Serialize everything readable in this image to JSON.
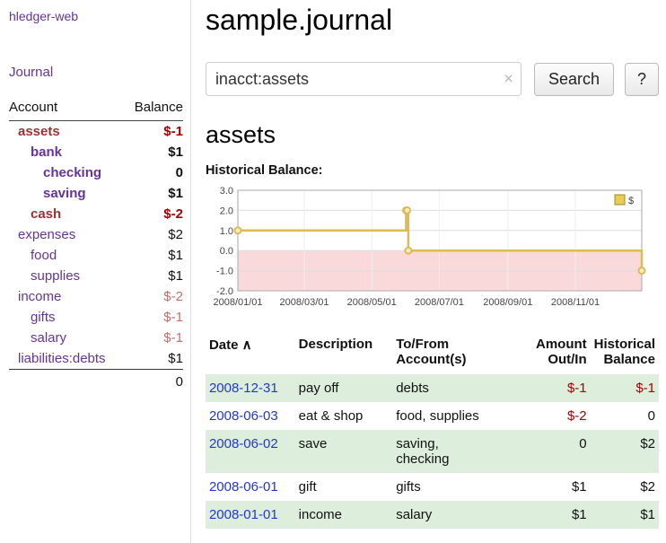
{
  "app": {
    "brand": "hledger-web"
  },
  "colors": {
    "accent_purple": "#663399",
    "account_negative_name": "#993333",
    "negative_amount": "#a40000",
    "negative_amount_faded": "#c46d6d",
    "link_blue": "#2238cc",
    "row_green": "#ddeedd",
    "chart_line_gold": "#ddbb55",
    "chart_negative_region": "#f9d9d9"
  },
  "sidebar": {
    "journal_label": "Journal",
    "header": {
      "account": "Account",
      "balance": "Balance"
    },
    "accounts": [
      {
        "name": "assets",
        "balance": "$-1",
        "level": 0,
        "strong": true,
        "tone": "maroon",
        "bal_tone": "neg"
      },
      {
        "name": "bank",
        "balance": "$1",
        "level": 1,
        "strong": true,
        "tone": "purple",
        "bal_tone": "plain"
      },
      {
        "name": "checking",
        "balance": "0",
        "level": 2,
        "strong": true,
        "tone": "purple",
        "bal_tone": "plain"
      },
      {
        "name": "saving",
        "balance": "$1",
        "level": 2,
        "strong": true,
        "tone": "purple",
        "bal_tone": "plain"
      },
      {
        "name": "cash",
        "balance": "$-2",
        "level": 1,
        "strong": true,
        "tone": "maroon",
        "bal_tone": "neg"
      },
      {
        "name": "expenses",
        "balance": "$2",
        "level": 0,
        "strong": false,
        "tone": "purple",
        "bal_tone": "plain"
      },
      {
        "name": "food",
        "balance": "$1",
        "level": 1,
        "strong": false,
        "tone": "purple",
        "bal_tone": "plain"
      },
      {
        "name": "supplies",
        "balance": "$1",
        "level": 1,
        "strong": false,
        "tone": "purple",
        "bal_tone": "plain"
      },
      {
        "name": "income",
        "balance": "$-2",
        "level": 0,
        "strong": false,
        "tone": "purple",
        "bal_tone": "negfaded"
      },
      {
        "name": "gifts",
        "balance": "$-1",
        "level": 1,
        "strong": false,
        "tone": "purple",
        "bal_tone": "negfaded"
      },
      {
        "name": "salary",
        "balance": "$-1",
        "level": 1,
        "strong": false,
        "tone": "purple",
        "bal_tone": "negfaded"
      },
      {
        "name": "liabilities:debts",
        "balance": "$1",
        "level": 0,
        "strong": false,
        "tone": "purple",
        "bal_tone": "plain"
      }
    ],
    "total": "0"
  },
  "search": {
    "value": "inacct:assets",
    "clear": "×",
    "button_label": "Search",
    "help_label": "?"
  },
  "main": {
    "title": "sample.journal",
    "heading": "assets",
    "chart_label": "Historical Balance:"
  },
  "chart_data": {
    "type": "line",
    "step": true,
    "title": "Historical Balance:",
    "xlabel": "",
    "ylabel": "",
    "legend": "$",
    "legend_position": "top-right",
    "ylim": [
      -2.0,
      3.0
    ],
    "yticks": [
      3.0,
      2.0,
      1.0,
      0.0,
      -1.0,
      -2.0
    ],
    "xlim": [
      "2008-01-01",
      "2008-12-31"
    ],
    "xticks": [
      "2008/01/01",
      "2008/03/01",
      "2008/05/01",
      "2008/07/01",
      "2008/09/01",
      "2008/11/01"
    ],
    "grid": true,
    "series": [
      {
        "name": "$",
        "color": "#ddbb55",
        "points": [
          {
            "date": "2008-01-01",
            "value": 1.0
          },
          {
            "date": "2008-06-01",
            "value": 2.0
          },
          {
            "date": "2008-06-02",
            "value": 2.0
          },
          {
            "date": "2008-06-03",
            "value": 0.0
          },
          {
            "date": "2008-12-31",
            "value": -1.0
          }
        ]
      }
    ],
    "negative_region_color": "#f9d9d9"
  },
  "register": {
    "sort_icon": "∧",
    "headers": [
      {
        "lines": [
          "Date"
        ]
      },
      {
        "lines": [
          "Description"
        ]
      },
      {
        "lines": [
          "To/From",
          "Account(s)"
        ]
      },
      {
        "lines": [
          "Amount",
          "Out/In"
        ]
      },
      {
        "lines": [
          "Historical",
          "Balance"
        ]
      }
    ],
    "rows": [
      {
        "date": "2008-12-31",
        "description": "pay off",
        "accounts": [
          "debts"
        ],
        "amount": "$-1",
        "balance": "$-1"
      },
      {
        "date": "2008-06-03",
        "description": "eat & shop",
        "accounts": [
          "food, supplies"
        ],
        "amount": "$-2",
        "balance": "0"
      },
      {
        "date": "2008-06-02",
        "description": "save",
        "accounts": [
          "saving,",
          "checking"
        ],
        "amount": "0",
        "balance": "$2"
      },
      {
        "date": "2008-06-01",
        "description": "gift",
        "accounts": [
          "gifts"
        ],
        "amount": "$1",
        "balance": "$2"
      },
      {
        "date": "2008-01-01",
        "description": "income",
        "accounts": [
          "salary"
        ],
        "amount": "$1",
        "balance": "$1"
      }
    ]
  }
}
